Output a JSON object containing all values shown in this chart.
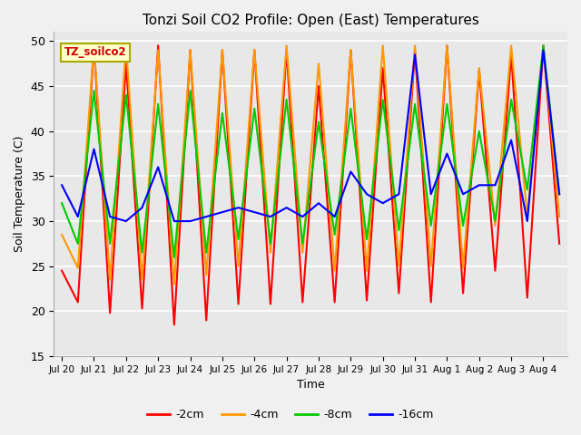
{
  "title": "Tonzi Soil CO2 Profile: Open (East) Temperatures",
  "xlabel": "Time",
  "ylabel": "Soil Temperature (C)",
  "ylim": [
    15,
    51
  ],
  "yticks": [
    15,
    20,
    25,
    30,
    35,
    40,
    45,
    50
  ],
  "series_labels": [
    "-2cm",
    "-4cm",
    "-8cm",
    "-16cm"
  ],
  "series_colors": [
    "#ff0000",
    "#ff9900",
    "#00cc00",
    "#0000ff"
  ],
  "x_tick_labels": [
    "Jul 20",
    "Jul 21",
    "Jul 22",
    "Jul 23",
    "Jul 24",
    "Jul 25",
    "Jul 26",
    "Jul 27",
    "Jul 28",
    "Jul 29",
    "Jul 30",
    "Jul 31",
    "Aug 1",
    "Aug 2",
    "Aug 3",
    "Aug 4"
  ],
  "data_2cm": [
    24.5,
    21.0,
    49.5,
    19.8,
    47.5,
    20.3,
    49.5,
    18.5,
    49.0,
    19.0,
    49.0,
    20.8,
    49.0,
    20.8,
    49.0,
    21.0,
    45.0,
    21.0,
    49.0,
    21.2,
    47.0,
    22.0,
    49.0,
    21.0,
    49.5,
    22.0,
    46.8,
    24.5,
    48.5,
    21.5,
    49.5,
    27.5
  ],
  "data_4cm": [
    28.5,
    24.8,
    49.5,
    23.5,
    49.5,
    23.5,
    49.0,
    23.0,
    49.0,
    24.0,
    49.0,
    25.0,
    49.0,
    26.5,
    49.5,
    26.5,
    47.5,
    24.5,
    49.0,
    24.5,
    49.5,
    25.0,
    49.5,
    25.0,
    49.5,
    24.8,
    47.0,
    29.5,
    49.5,
    30.5,
    49.5,
    30.5
  ],
  "data_8cm": [
    32.0,
    27.5,
    44.5,
    27.5,
    44.0,
    26.5,
    43.0,
    26.0,
    44.5,
    26.5,
    42.0,
    28.0,
    42.5,
    27.5,
    43.5,
    27.5,
    41.0,
    28.5,
    42.5,
    28.0,
    43.5,
    29.0,
    43.0,
    29.5,
    43.0,
    29.5,
    40.0,
    30.0,
    43.5,
    33.5,
    49.5,
    33.0
  ],
  "data_16cm": [
    34.0,
    30.5,
    38.0,
    30.5,
    30.0,
    31.5,
    36.0,
    30.0,
    30.0,
    30.5,
    31.0,
    31.5,
    31.0,
    30.5,
    31.5,
    30.5,
    32.0,
    30.5,
    35.5,
    33.0,
    32.0,
    33.0,
    48.5,
    33.0,
    37.5,
    33.0,
    34.0,
    34.0,
    39.0,
    30.0,
    49.0,
    33.0
  ],
  "fig_bg": "#f0f0f0",
  "axes_bg": "#e8e8e8",
  "grid_color": "#ffffff"
}
